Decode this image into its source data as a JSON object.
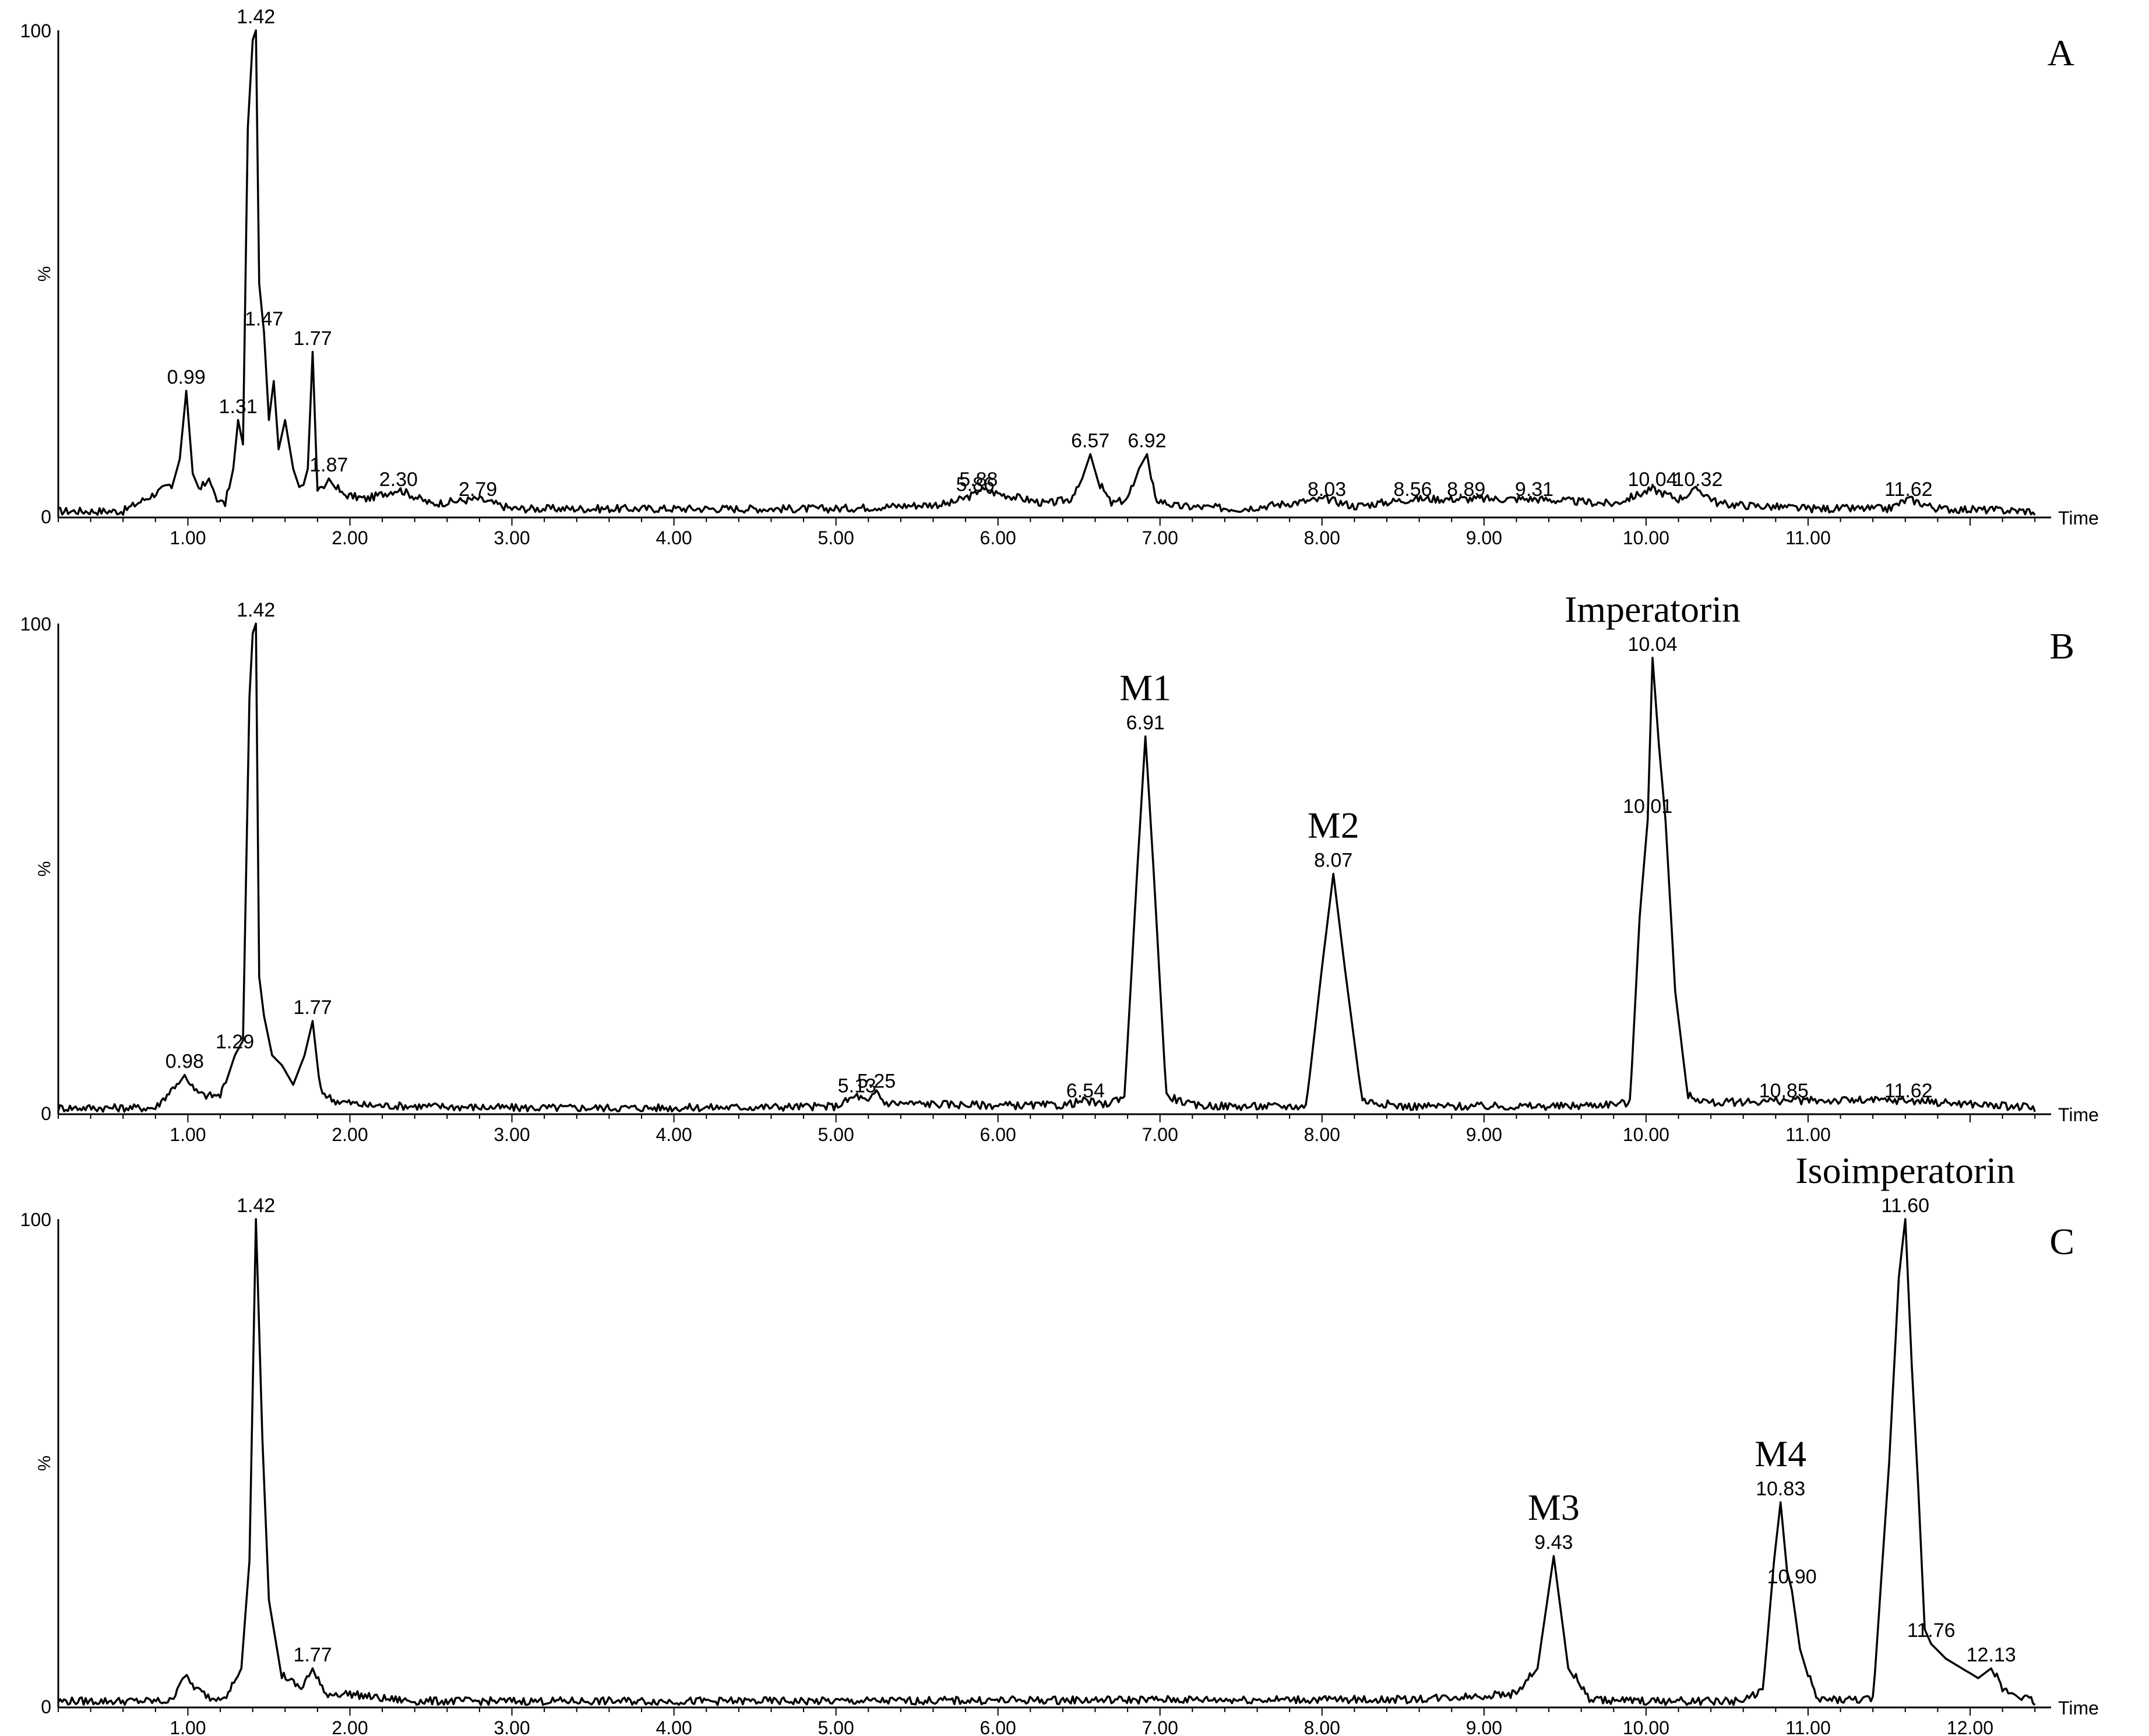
{
  "chart_data": [
    {
      "type": "line",
      "panel_label": "A",
      "x_unit_label": "Time",
      "y_top_label": "100",
      "y_mid_label": "%",
      "y_bottom_label": "0",
      "xlim": [
        0.2,
        12.5
      ],
      "ylim": [
        0,
        100
      ],
      "x_ticks": [
        "1.00",
        "2.00",
        "3.00",
        "4.00",
        "5.00",
        "6.00",
        "7.00",
        "8.00",
        "9.00",
        "10.00",
        "11.00"
      ],
      "peak_labels": [
        {
          "text": "0.99",
          "x": 0.99,
          "y": 26
        },
        {
          "text": "1.31",
          "x": 1.31,
          "y": 20
        },
        {
          "text": "1.42",
          "x": 1.42,
          "y": 100
        },
        {
          "text": "1.47",
          "x": 1.47,
          "y": 38
        },
        {
          "text": "1.77",
          "x": 1.77,
          "y": 34
        },
        {
          "text": "1.87",
          "x": 1.87,
          "y": 8
        },
        {
          "text": "2.30",
          "x": 2.3,
          "y": 5
        },
        {
          "text": "2.79",
          "x": 2.79,
          "y": 3
        },
        {
          "text": "5.86",
          "x": 5.86,
          "y": 4
        },
        {
          "text": "5.88",
          "x": 5.88,
          "y": 5
        },
        {
          "text": "6.57",
          "x": 6.57,
          "y": 13
        },
        {
          "text": "6.92",
          "x": 6.92,
          "y": 13
        },
        {
          "text": "8.03",
          "x": 8.03,
          "y": 3
        },
        {
          "text": "8.56",
          "x": 8.56,
          "y": 3
        },
        {
          "text": "8.89",
          "x": 8.89,
          "y": 3
        },
        {
          "text": "9.31",
          "x": 9.31,
          "y": 3
        },
        {
          "text": "10.04",
          "x": 10.04,
          "y": 5
        },
        {
          "text": "10.32",
          "x": 10.32,
          "y": 5
        },
        {
          "text": "11.62",
          "x": 11.62,
          "y": 3
        }
      ],
      "compound_labels": [],
      "trace": {
        "x": [
          0.2,
          0.6,
          0.9,
          0.95,
          0.99,
          1.03,
          1.08,
          1.13,
          1.18,
          1.23,
          1.28,
          1.31,
          1.34,
          1.37,
          1.4,
          1.42,
          1.44,
          1.47,
          1.5,
          1.53,
          1.56,
          1.6,
          1.65,
          1.7,
          1.74,
          1.77,
          1.8,
          1.84,
          1.87,
          1.95,
          2.1,
          2.3,
          2.5,
          2.79,
          3.0,
          4.0,
          5.0,
          5.7,
          5.86,
          5.88,
          6.3,
          6.45,
          6.52,
          6.57,
          6.63,
          6.7,
          6.8,
          6.87,
          6.92,
          6.97,
          7.1,
          7.5,
          8.03,
          8.2,
          8.56,
          8.89,
          9.31,
          9.8,
          10.04,
          10.2,
          10.32,
          10.45,
          11.0,
          11.5,
          11.62,
          11.8,
          12.4
        ],
        "y": [
          0.5,
          0.5,
          6,
          12,
          26,
          9,
          5,
          8,
          3,
          2,
          10,
          20,
          15,
          80,
          98,
          100,
          48,
          38,
          20,
          28,
          14,
          20,
          10,
          5,
          10,
          34,
          5,
          6,
          8,
          4,
          3,
          5,
          2,
          3,
          1,
          1,
          1,
          2,
          4,
          5,
          2,
          3,
          8,
          13,
          6,
          2,
          3,
          10,
          13,
          3,
          1.5,
          1,
          3,
          1.5,
          3,
          3,
          3,
          2,
          5,
          3,
          5,
          2,
          1,
          1,
          3,
          1,
          0.5
        ]
      }
    },
    {
      "type": "line",
      "panel_label": "B",
      "x_unit_label": "Time",
      "y_top_label": "100",
      "y_mid_label": "%",
      "y_bottom_label": "0",
      "xlim": [
        0.2,
        12.5
      ],
      "ylim": [
        0,
        100
      ],
      "x_ticks": [
        "1.00",
        "2.00",
        "3.00",
        "4.00",
        "5.00",
        "6.00",
        "7.00",
        "8.00",
        "9.00",
        "10.00",
        "11.00"
      ],
      "peak_labels": [
        {
          "text": "0.98",
          "x": 0.98,
          "y": 8
        },
        {
          "text": "1.29",
          "x": 1.29,
          "y": 12
        },
        {
          "text": "1.42",
          "x": 1.42,
          "y": 100
        },
        {
          "text": "1.77",
          "x": 1.77,
          "y": 19
        },
        {
          "text": "5.13",
          "x": 5.13,
          "y": 3
        },
        {
          "text": "5.25",
          "x": 5.25,
          "y": 4
        },
        {
          "text": "6.54",
          "x": 6.54,
          "y": 2
        },
        {
          "text": "6.91",
          "x": 6.91,
          "y": 77
        },
        {
          "text": "8.07",
          "x": 8.07,
          "y": 49
        },
        {
          "text": "10.01",
          "x": 10.01,
          "y": 60
        },
        {
          "text": "10.04",
          "x": 10.04,
          "y": 93
        },
        {
          "text": "10.85",
          "x": 10.85,
          "y": 2
        },
        {
          "text": "11.62",
          "x": 11.62,
          "y": 2
        }
      ],
      "compound_labels": [
        {
          "text": "M1",
          "x": 6.91,
          "y": 77
        },
        {
          "text": "M2",
          "x": 8.07,
          "y": 49
        },
        {
          "text": "Imperatorin",
          "x": 10.04,
          "y": 93
        }
      ],
      "trace": {
        "x": [
          0.2,
          0.8,
          0.92,
          0.98,
          1.04,
          1.1,
          1.2,
          1.29,
          1.34,
          1.38,
          1.4,
          1.42,
          1.44,
          1.47,
          1.52,
          1.58,
          1.65,
          1.72,
          1.77,
          1.82,
          1.9,
          2.1,
          2.5,
          3.0,
          4.0,
          5.0,
          5.13,
          5.2,
          5.25,
          5.3,
          6.0,
          6.4,
          6.54,
          6.65,
          6.78,
          6.86,
          6.91,
          6.96,
          7.04,
          7.2,
          7.5,
          7.9,
          8.0,
          8.07,
          8.14,
          8.25,
          8.5,
          9.5,
          9.9,
          9.96,
          10.01,
          10.04,
          10.08,
          10.12,
          10.18,
          10.26,
          10.4,
          10.85,
          11.62,
          12.4
        ],
        "y": [
          0.5,
          0.5,
          5,
          8,
          4,
          3,
          3,
          12,
          15,
          85,
          98,
          100,
          28,
          20,
          12,
          10,
          6,
          12,
          19,
          4,
          2,
          1,
          0.8,
          0.5,
          0.5,
          0.8,
          3,
          1.5,
          4,
          1.5,
          1,
          1,
          2,
          1,
          3,
          50,
          77,
          50,
          3,
          1,
          0.8,
          0.8,
          30,
          49,
          30,
          2,
          0.8,
          0.8,
          1.5,
          40,
          60,
          93,
          75,
          60,
          25,
          3,
          1.5,
          2,
          2,
          0.5
        ]
      }
    },
    {
      "type": "line",
      "panel_label": "C",
      "x_unit_label": "Time",
      "y_top_label": "100",
      "y_mid_label": "%",
      "y_bottom_label": "0",
      "xlim": [
        0.2,
        12.5
      ],
      "ylim": [
        0,
        100
      ],
      "x_ticks": [
        "1.00",
        "2.00",
        "3.00",
        "4.00",
        "5.00",
        "6.00",
        "7.00",
        "8.00",
        "9.00",
        "10.00",
        "11.00",
        "12.00"
      ],
      "peak_labels": [
        {
          "text": "1.42",
          "x": 1.42,
          "y": 100
        },
        {
          "text": "1.77",
          "x": 1.77,
          "y": 8
        },
        {
          "text": "9.43",
          "x": 9.43,
          "y": 31
        },
        {
          "text": "10.83",
          "x": 10.83,
          "y": 42
        },
        {
          "text": "10.90",
          "x": 10.9,
          "y": 24
        },
        {
          "text": "11.60",
          "x": 11.6,
          "y": 100
        },
        {
          "text": "11.76",
          "x": 11.76,
          "y": 13
        },
        {
          "text": "12.13",
          "x": 12.13,
          "y": 8
        }
      ],
      "compound_labels": [
        {
          "text": "M3",
          "x": 9.43,
          "y": 31
        },
        {
          "text": "M4",
          "x": 10.83,
          "y": 42
        },
        {
          "text": "Isoimperatorin",
          "x": 11.6,
          "y": 100
        }
      ],
      "trace": {
        "x": [
          0.2,
          0.9,
          0.97,
          1.05,
          1.15,
          1.25,
          1.33,
          1.38,
          1.42,
          1.46,
          1.5,
          1.58,
          1.7,
          1.77,
          1.84,
          2.0,
          2.2,
          2.4,
          3.0,
          5.0,
          7.0,
          8.5,
          9.2,
          9.33,
          9.43,
          9.52,
          9.65,
          10.0,
          10.6,
          10.72,
          10.79,
          10.83,
          10.87,
          10.9,
          10.95,
          11.05,
          11.4,
          11.5,
          11.56,
          11.6,
          11.64,
          11.68,
          11.72,
          11.76,
          11.85,
          11.95,
          12.05,
          12.13,
          12.2,
          12.4
        ],
        "y": [
          0.5,
          0.5,
          6,
          3,
          1,
          2,
          8,
          30,
          100,
          55,
          22,
          6,
          3,
          8,
          2,
          2,
          1,
          0.5,
          0.5,
          0.5,
          0.8,
          0.8,
          2,
          8,
          31,
          8,
          0.8,
          0.5,
          0.5,
          3,
          30,
          42,
          28,
          24,
          12,
          0.8,
          0.8,
          50,
          88,
          100,
          70,
          45,
          16,
          13,
          10,
          8,
          6,
          8,
          3,
          0.5
        ]
      }
    }
  ]
}
